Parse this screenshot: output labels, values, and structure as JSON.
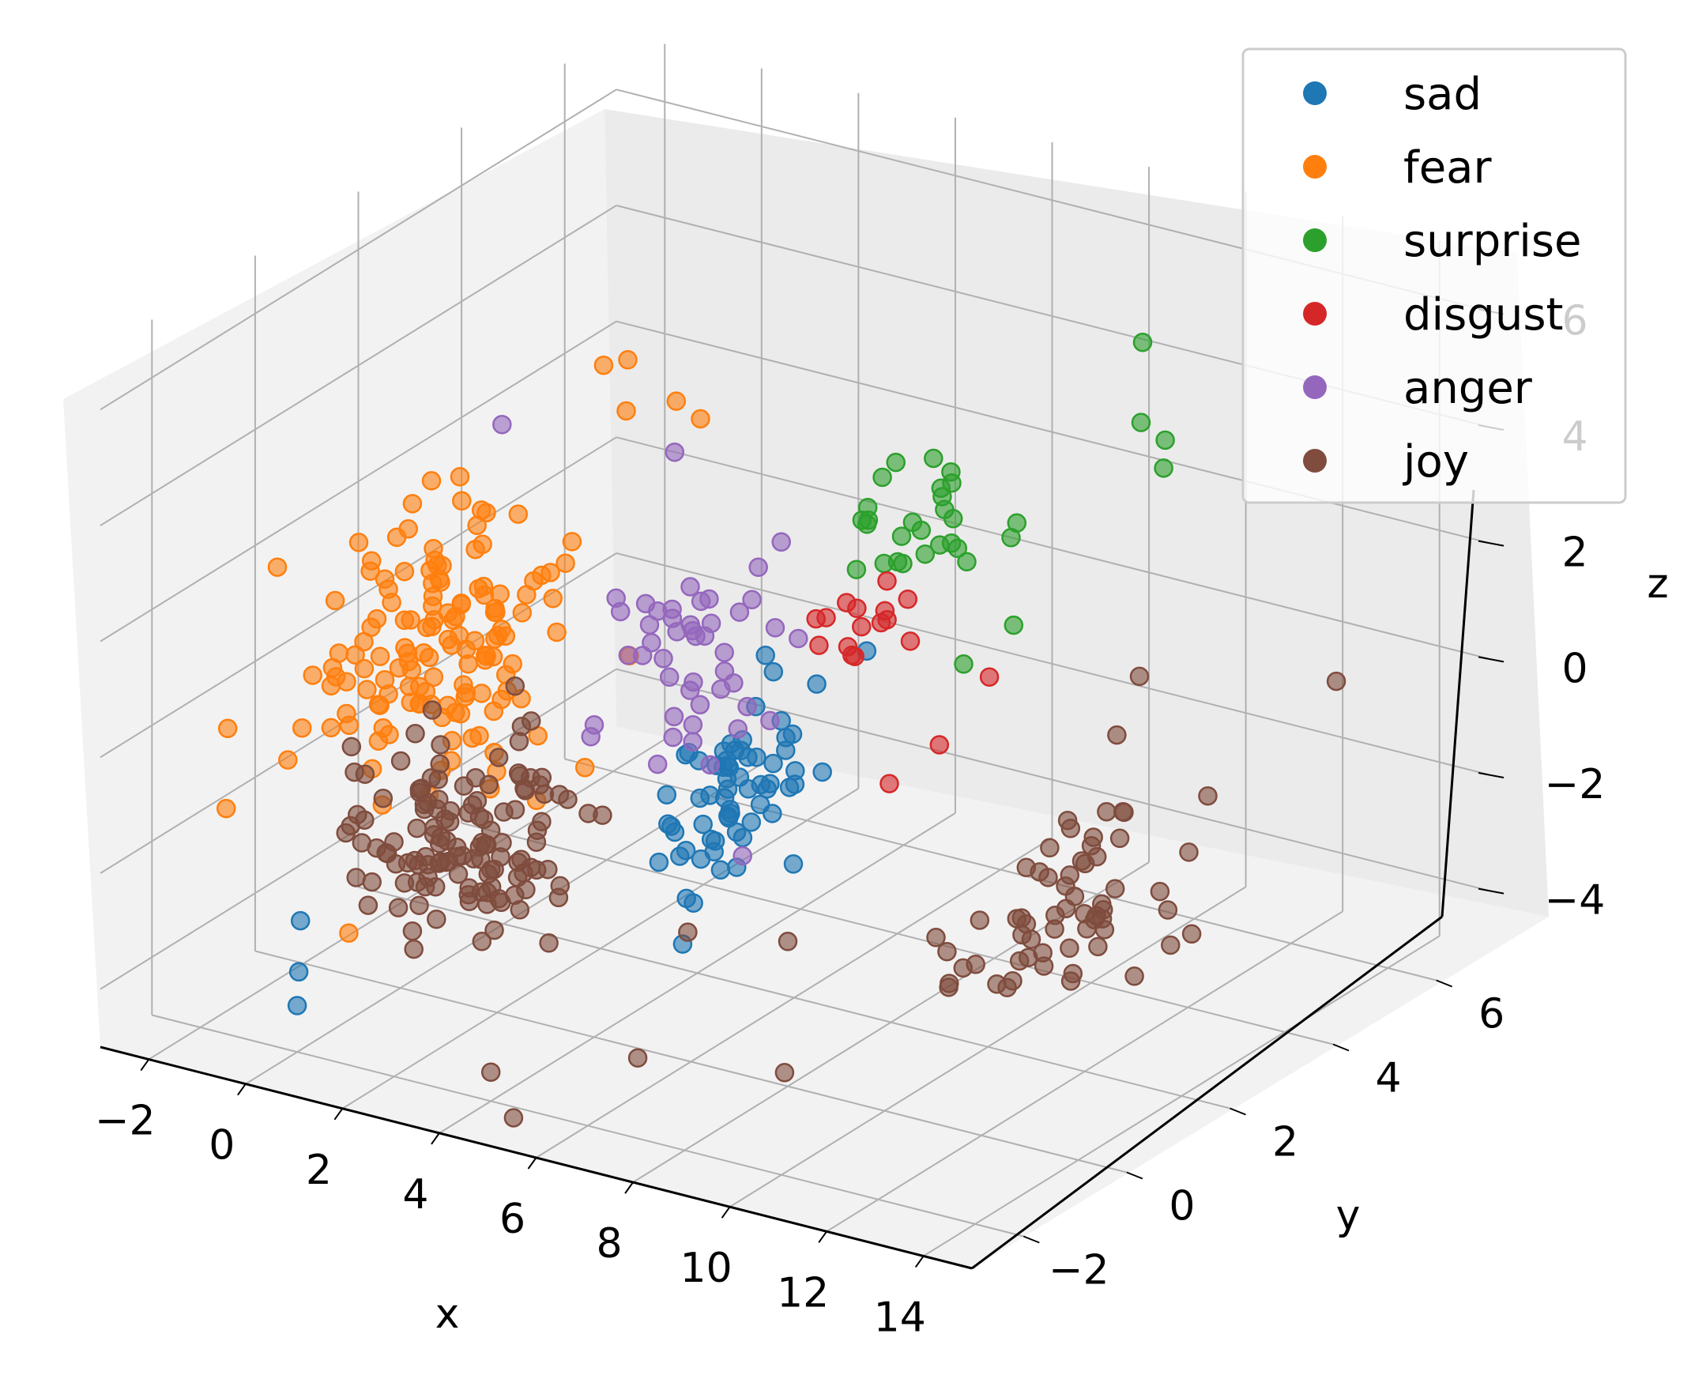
{
  "chart_data": {
    "type": "scatter",
    "projection": "3d",
    "title": "",
    "xlabel": "x",
    "ylabel": "y",
    "zlabel": "z",
    "xlim": [
      -3,
      15
    ],
    "ylim": [
      -3,
      7
    ],
    "zlim": [
      -5,
      7
    ],
    "x_ticks": [
      "−2",
      "0",
      "2",
      "4",
      "6",
      "8",
      "10",
      "12",
      "14"
    ],
    "y_ticks": [
      "−2",
      "0",
      "2",
      "4",
      "6"
    ],
    "z_ticks": [
      "−4",
      "−2",
      "0",
      "2",
      "4",
      "6"
    ],
    "grid": true,
    "legend_position": "top-right",
    "marker_opacity": 0.6,
    "series": [
      {
        "name": "sad",
        "color": "#1f77b4",
        "cluster": {
          "x": [
            4.5,
            7.0
          ],
          "y": [
            -1.0,
            3.0
          ],
          "z": [
            -3.5,
            1.5
          ],
          "count": 60
        },
        "points": [
          {
            "x": 7.5,
            "y": 2.0,
            "z": 1.3
          },
          {
            "x": 7.0,
            "y": 1.5,
            "z": 0.9
          },
          {
            "x": 6.8,
            "y": 1.0,
            "z": 0.5
          },
          {
            "x": 6.5,
            "y": 0.5,
            "z": 0.2
          },
          {
            "x": -1.0,
            "y": -1.0,
            "z": -3.5
          },
          {
            "x": -0.5,
            "y": -1.5,
            "z": -4.0
          },
          {
            "x": 0.0,
            "y": -2.0,
            "z": -4.2
          },
          {
            "x": 5.5,
            "y": 0.0,
            "z": -0.5
          },
          {
            "x": 6.0,
            "y": 1.0,
            "z": 0.0
          }
        ]
      },
      {
        "name": "fear",
        "color": "#ff7f0e",
        "cluster": {
          "x": [
            -2.5,
            3.5
          ],
          "y": [
            -2.0,
            3.0
          ],
          "z": [
            -3.0,
            4.0
          ],
          "count": 140
        },
        "points": [
          {
            "x": 1.5,
            "y": 3.0,
            "z": 4.5
          },
          {
            "x": 2.0,
            "y": 2.5,
            "z": 4.0
          },
          {
            "x": 1.0,
            "y": 3.0,
            "z": 4.3
          },
          {
            "x": 2.5,
            "y": 3.0,
            "z": 4.0
          },
          {
            "x": 3.0,
            "y": 3.0,
            "z": 3.8
          },
          {
            "x": -2.5,
            "y": -1.0,
            "z": -0.5
          },
          {
            "x": -2.0,
            "y": -1.5,
            "z": -1.5
          },
          {
            "x": 0.0,
            "y": -1.0,
            "z": -3.5
          }
        ]
      },
      {
        "name": "surprise",
        "color": "#2ca02c",
        "cluster": {
          "x": [
            5.0,
            9.0
          ],
          "y": [
            2.0,
            5.0
          ],
          "z": [
            1.0,
            4.0
          ],
          "count": 25
        },
        "points": [
          {
            "x": 10.0,
            "y": 5.0,
            "z": 5.5
          },
          {
            "x": 10.5,
            "y": 4.5,
            "z": 4.5
          },
          {
            "x": 11.0,
            "y": 4.5,
            "z": 4.3
          },
          {
            "x": 11.5,
            "y": 4.0,
            "z": 4.2
          },
          {
            "x": 9.0,
            "y": 3.5,
            "z": 3.0
          },
          {
            "x": 10.0,
            "y": 2.5,
            "z": 2.0
          },
          {
            "x": 9.5,
            "y": 2.0,
            "z": 1.5
          },
          {
            "x": 8.5,
            "y": 3.0,
            "z": 2.5
          }
        ]
      },
      {
        "name": "disgust",
        "color": "#d62728",
        "cluster": {
          "x": [
            6.0,
            9.0
          ],
          "y": [
            1.0,
            3.0
          ],
          "z": [
            0.5,
            2.5
          ],
          "count": 15
        },
        "points": [
          {
            "x": 9.0,
            "y": 2.0,
            "z": 0.0
          },
          {
            "x": 9.5,
            "y": 2.5,
            "z": 1.0
          },
          {
            "x": 8.5,
            "y": 1.5,
            "z": -0.5
          }
        ]
      },
      {
        "name": "anger",
        "color": "#9467bd",
        "cluster": {
          "x": [
            1.0,
            6.0
          ],
          "y": [
            0.0,
            4.0
          ],
          "z": [
            -3.0,
            3.5
          ],
          "count": 45
        },
        "points": [
          {
            "x": 0.5,
            "y": 1.5,
            "z": 4.0
          },
          {
            "x": 3.0,
            "y": 2.5,
            "z": 3.5
          },
          {
            "x": 6.0,
            "y": 1.0,
            "z": -2.0
          }
        ]
      },
      {
        "name": "joy",
        "color": "#7f4c3e",
        "cluster": {
          "x": [
            -1.0,
            4.0
          ],
          "y": [
            -2.5,
            2.0
          ],
          "z": [
            -4.5,
            0.5
          ],
          "count": 130
        },
        "cluster2": {
          "x": [
            10.0,
            14.0
          ],
          "y": [
            -1.0,
            5.0
          ],
          "z": [
            -3.5,
            -0.5
          ],
          "count": 60
        },
        "points": [
          {
            "x": 7.0,
            "y": -1.0,
            "z": -2.0
          },
          {
            "x": 8.0,
            "y": 0.0,
            "z": -2.5
          },
          {
            "x": 9.0,
            "y": -1.0,
            "z": -4.0
          },
          {
            "x": 4.0,
            "y": -2.0,
            "z": -4.5
          },
          {
            "x": 5.0,
            "y": -2.5,
            "z": -4.8
          },
          {
            "x": 6.5,
            "y": -1.5,
            "z": -4.0
          },
          {
            "x": 11.0,
            "y": 4.0,
            "z": 0.5
          },
          {
            "x": 14.0,
            "y": 5.0,
            "z": 0.5
          },
          {
            "x": 10.0,
            "y": 4.5,
            "z": -1.0
          }
        ]
      }
    ]
  }
}
